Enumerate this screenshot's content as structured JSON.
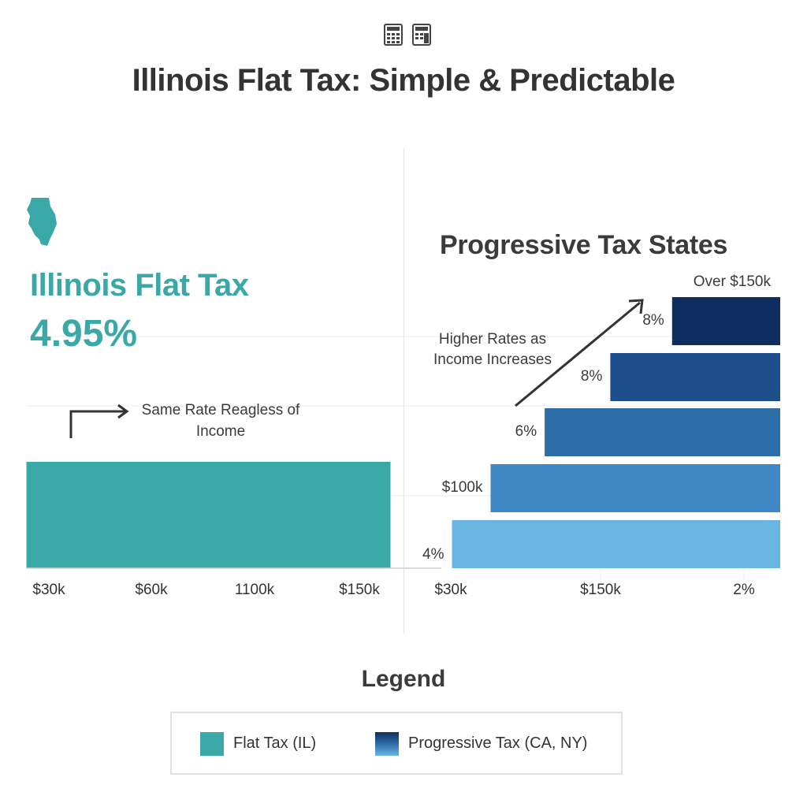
{
  "title": "Illinois Flat Tax: Simple & Predictable",
  "icons": [
    "calculator-icon",
    "calculator-icon"
  ],
  "colors": {
    "flat": "#3aa8a6",
    "progressive": [
      "#6ab6e2",
      "#3f88c5",
      "#2d6ea9",
      "#1e4f8d",
      "#102d61"
    ]
  },
  "chart_data": [
    {
      "type": "bar",
      "title": "Illinois Flat Tax",
      "rate_label": "4.95%",
      "annotation": "Same Rate Reagless of Income",
      "categories": [
        "$30k",
        "$60k",
        "1100k",
        "$150k"
      ],
      "series": [
        {
          "name": "Flat Tax (IL)",
          "values": [
            4.95,
            4.95,
            4.95,
            4.95
          ]
        }
      ]
    },
    {
      "type": "bar",
      "title": "Progressive Tax States",
      "annotation": "Higher Rates as Income Increases",
      "tick_labels": [
        "$30k",
        "$150k",
        "2%"
      ],
      "bars": [
        {
          "label": "4%",
          "start": 0.15
        },
        {
          "label": "$100k",
          "start": 0.25
        },
        {
          "label": "6%",
          "start": 0.39
        },
        {
          "label": "8%",
          "start": 0.56
        },
        {
          "label": "8%",
          "start": 0.72,
          "top_label": "Over $150k"
        }
      ]
    }
  ],
  "legend": {
    "title": "Legend",
    "items": [
      {
        "label": "Flat Tax (IL)"
      },
      {
        "label": "Progressive Tax (CA, NY)"
      }
    ]
  }
}
